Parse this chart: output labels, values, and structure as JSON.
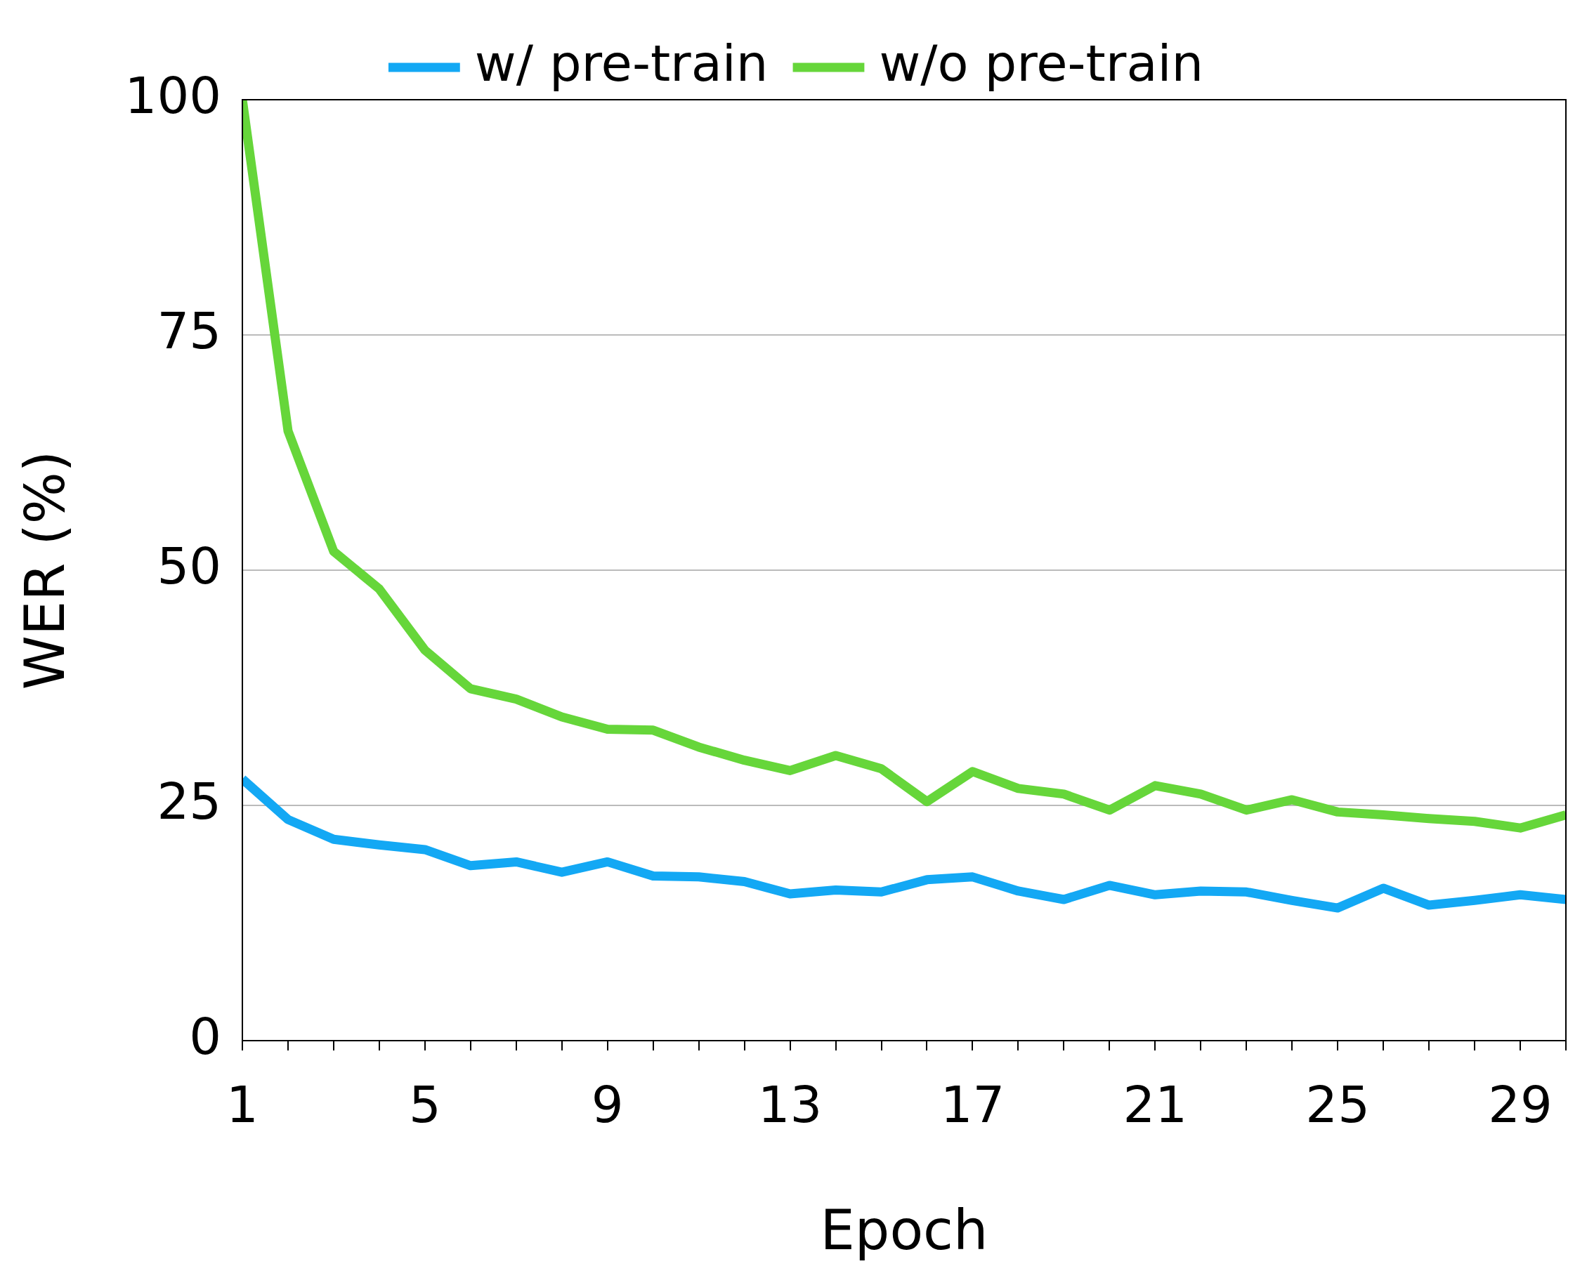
{
  "chart_data": {
    "type": "line",
    "xlabel": "Epoch",
    "ylabel": "WER (%)",
    "x": [
      1,
      2,
      3,
      4,
      5,
      6,
      7,
      8,
      9,
      10,
      11,
      12,
      13,
      14,
      15,
      16,
      17,
      18,
      19,
      20,
      21,
      22,
      23,
      24,
      25,
      26,
      27,
      28,
      29,
      30
    ],
    "series": [
      {
        "name": "w/ pre-train",
        "color": "#13a8f4",
        "values": [
          27.8,
          23.5,
          21.4,
          20.8,
          20.3,
          18.6,
          19.0,
          17.9,
          19.0,
          17.5,
          17.4,
          16.9,
          15.6,
          16.0,
          15.8,
          17.1,
          17.4,
          15.9,
          15.0,
          16.5,
          15.5,
          15.9,
          15.8,
          14.9,
          14.1,
          16.2,
          14.4,
          14.9,
          15.5,
          15.0
        ]
      },
      {
        "name": "w/o pre-train",
        "color": "#66d63a",
        "values": [
          100,
          64.8,
          52.0,
          48.0,
          41.5,
          37.4,
          36.3,
          34.4,
          33.1,
          33.0,
          31.2,
          29.8,
          28.7,
          30.3,
          28.9,
          25.4,
          28.6,
          26.8,
          26.2,
          24.5,
          27.1,
          26.2,
          24.5,
          25.6,
          24.3,
          24.0,
          23.6,
          23.3,
          22.6,
          24.0
        ]
      }
    ],
    "xlim": [
      1,
      30
    ],
    "xticks": [
      1,
      {
        "value": 2,
        "label": null
      },
      {
        "value": 3,
        "label": null
      },
      {
        "value": 4,
        "label": null
      },
      5,
      {
        "value": 6,
        "label": null
      },
      {
        "value": 7,
        "label": null
      },
      {
        "value": 8,
        "label": null
      },
      9,
      {
        "value": 10,
        "label": null
      },
      {
        "value": 11,
        "label": null
      },
      {
        "value": 12,
        "label": null
      },
      13,
      {
        "value": 14,
        "label": null
      },
      {
        "value": 15,
        "label": null
      },
      {
        "value": 16,
        "label": null
      },
      17,
      {
        "value": 18,
        "label": null
      },
      {
        "value": 19,
        "label": null
      },
      {
        "value": 20,
        "label": null
      },
      21,
      {
        "value": 22,
        "label": null
      },
      {
        "value": 23,
        "label": null
      },
      {
        "value": 24,
        "label": null
      },
      25,
      {
        "value": 26,
        "label": null
      },
      {
        "value": 27,
        "label": null
      },
      {
        "value": 28,
        "label": null
      },
      29,
      {
        "value": 30,
        "label": null
      }
    ],
    "ylim": [
      0,
      100
    ],
    "yticks": [
      0,
      25,
      50,
      75,
      100
    ],
    "grid": "y",
    "legend": "top",
    "marker": "none",
    "line_style": "solid"
  }
}
